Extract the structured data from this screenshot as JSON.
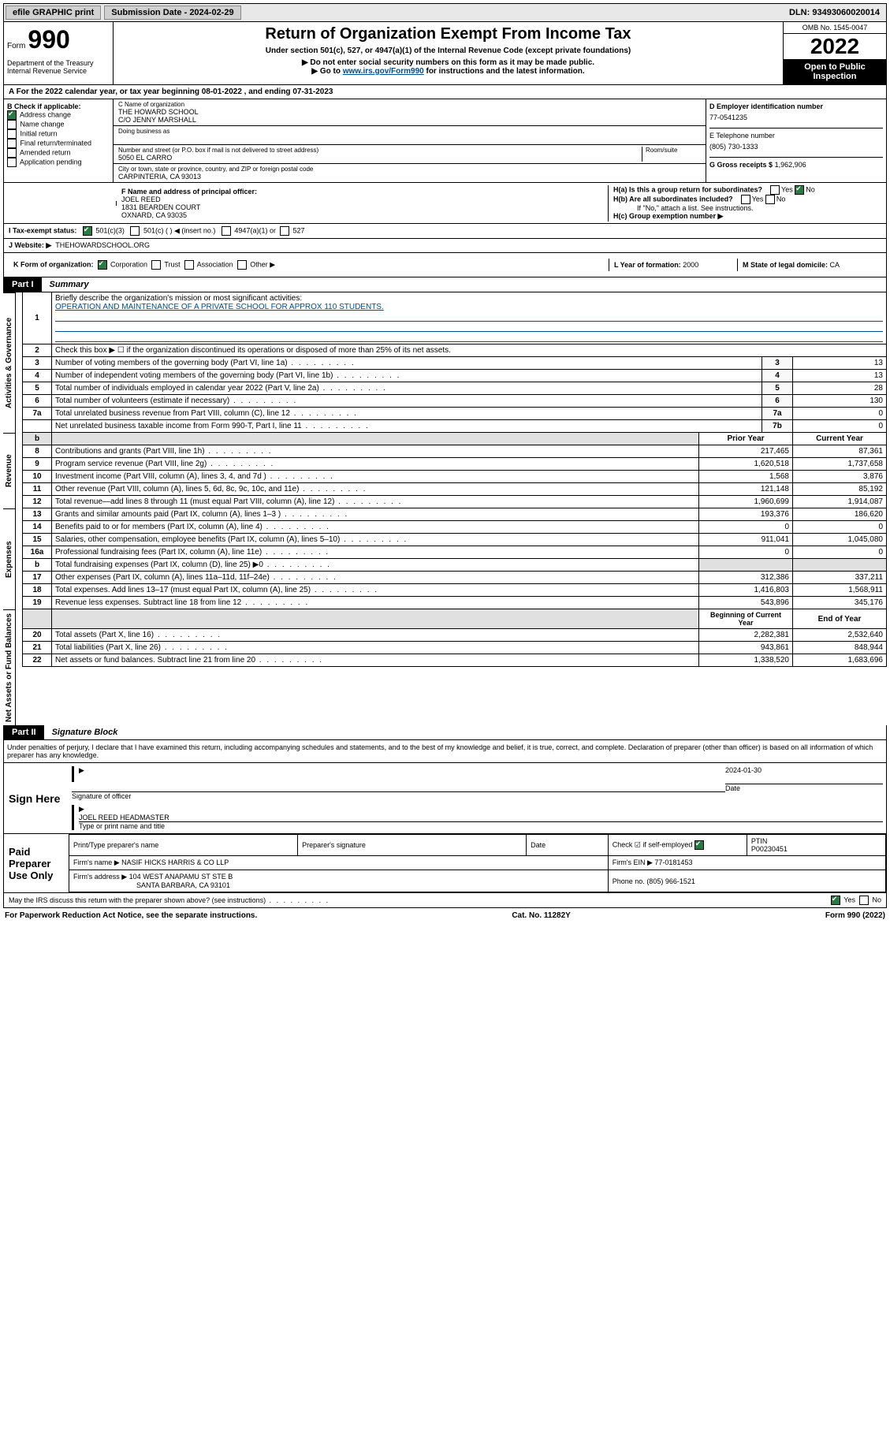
{
  "top": {
    "efile": "efile GRAPHIC print",
    "sub_label": "Submission Date - 2024-02-29",
    "dln": "DLN: 93493060020014"
  },
  "header": {
    "form": "Form",
    "num": "990",
    "title": "Return of Organization Exempt From Income Tax",
    "sub1": "Under section 501(c), 527, or 4947(a)(1) of the Internal Revenue Code (except private foundations)",
    "sub2": "▶ Do not enter social security numbers on this form as it may be made public.",
    "sub3_pre": "▶ Go to ",
    "sub3_link": "www.irs.gov/Form990",
    "sub3_post": " for instructions and the latest information.",
    "omb": "OMB No. 1545-0047",
    "year": "2022",
    "open": "Open to Public Inspection",
    "dept": "Department of the Treasury",
    "irs": "Internal Revenue Service"
  },
  "period": {
    "a": "A For the 2022 calendar year, or tax year beginning 08-01-2022    , and ending 07-31-2023"
  },
  "box_b": {
    "label": "B Check if applicable:",
    "addr": "Address change",
    "name": "Name change",
    "init": "Initial return",
    "final": "Final return/terminated",
    "amend": "Amended return",
    "app": "Application pending"
  },
  "box_c": {
    "name_lab": "C Name of organization",
    "name1": "THE HOWARD SCHOOL",
    "name2": "C/O JENNY MARSHALL",
    "dba_lab": "Doing business as",
    "addr_lab": "Number and street (or P.O. box if mail is not delivered to street address)",
    "room_lab": "Room/suite",
    "addr": "5050 EL CARRO",
    "city_lab": "City or town, state or province, country, and ZIP or foreign postal code",
    "city": "CARPINTERIA, CA  93013"
  },
  "box_d": {
    "ein_lab": "D Employer identification number",
    "ein": "77-0541235",
    "tel_lab": "E Telephone number",
    "tel": "(805) 730-1333",
    "gross_lab": "G Gross receipts $",
    "gross": "1,962,906"
  },
  "box_f": {
    "lab": "F Name and address of principal officer:",
    "n1": "JOEL REED",
    "n2": "1831 BEARDEN COURT",
    "n3": "OXNARD, CA  93035"
  },
  "box_h": {
    "ha": "H(a)  Is this a group return for subordinates?",
    "hb": "H(b)  Are all subordinates included?",
    "hb_note": "If \"No,\" attach a list. See instructions.",
    "hc": "H(c)  Group exemption number ▶",
    "yes": "Yes",
    "no": "No"
  },
  "tax_status": {
    "lab": "I   Tax-exempt status:",
    "c3": "501(c)(3)",
    "c": "501(c) (  ) ◀ (insert no.)",
    "a1": "4947(a)(1) or",
    "s527": "527"
  },
  "website": {
    "lab": "J   Website: ▶",
    "val": "THEHOWARDSCHOOL.ORG"
  },
  "form_org": {
    "lab": "K Form of organization:",
    "corp": "Corporation",
    "trust": "Trust",
    "assoc": "Association",
    "other": "Other ▶",
    "yof_lab": "L Year of formation:",
    "yof": "2000",
    "dom_lab": "M State of legal domicile:",
    "dom": "CA"
  },
  "part1": {
    "tag": "Part I",
    "title": "Summary",
    "l1": "Briefly describe the organization's mission or most significant activities:",
    "mission": "OPERATION AND MAINTENANCE OF A PRIVATE SCHOOL FOR APPROX 110 STUDENTS.",
    "l2": "Check this box ▶ ☐  if the organization discontinued its operations or disposed of more than 25% of its net assets.",
    "rows_gov": [
      {
        "n": "3",
        "d": "Number of voting members of the governing body (Part VI, line 1a)",
        "k": "3",
        "v": "13"
      },
      {
        "n": "4",
        "d": "Number of independent voting members of the governing body (Part VI, line 1b)",
        "k": "4",
        "v": "13"
      },
      {
        "n": "5",
        "d": "Total number of individuals employed in calendar year 2022 (Part V, line 2a)",
        "k": "5",
        "v": "28"
      },
      {
        "n": "6",
        "d": "Total number of volunteers (estimate if necessary)",
        "k": "6",
        "v": "130"
      },
      {
        "n": "7a",
        "d": "Total unrelated business revenue from Part VIII, column (C), line 12",
        "k": "7a",
        "v": "0"
      },
      {
        "n": "",
        "d": "Net unrelated business taxable income from Form 990-T, Part I, line 11",
        "k": "7b",
        "v": "0"
      }
    ],
    "prior": "Prior Year",
    "current": "Current Year",
    "rows_rev": [
      {
        "n": "8",
        "d": "Contributions and grants (Part VIII, line 1h)",
        "p": "217,465",
        "c": "87,361"
      },
      {
        "n": "9",
        "d": "Program service revenue (Part VIII, line 2g)",
        "p": "1,620,518",
        "c": "1,737,658"
      },
      {
        "n": "10",
        "d": "Investment income (Part VIII, column (A), lines 3, 4, and 7d )",
        "p": "1,568",
        "c": "3,876"
      },
      {
        "n": "11",
        "d": "Other revenue (Part VIII, column (A), lines 5, 6d, 8c, 9c, 10c, and 11e)",
        "p": "121,148",
        "c": "85,192"
      },
      {
        "n": "12",
        "d": "Total revenue—add lines 8 through 11 (must equal Part VIII, column (A), line 12)",
        "p": "1,960,699",
        "c": "1,914,087"
      }
    ],
    "rows_exp": [
      {
        "n": "13",
        "d": "Grants and similar amounts paid (Part IX, column (A), lines 1–3 )",
        "p": "193,376",
        "c": "186,620"
      },
      {
        "n": "14",
        "d": "Benefits paid to or for members (Part IX, column (A), line 4)",
        "p": "0",
        "c": "0"
      },
      {
        "n": "15",
        "d": "Salaries, other compensation, employee benefits (Part IX, column (A), lines 5–10)",
        "p": "911,041",
        "c": "1,045,080"
      },
      {
        "n": "16a",
        "d": "Professional fundraising fees (Part IX, column (A), line 11e)",
        "p": "0",
        "c": "0"
      },
      {
        "n": "b",
        "d": "Total fundraising expenses (Part IX, column (D), line 25) ▶0",
        "p": "",
        "c": "",
        "shade": true
      },
      {
        "n": "17",
        "d": "Other expenses (Part IX, column (A), lines 11a–11d, 11f–24e)",
        "p": "312,386",
        "c": "337,211"
      },
      {
        "n": "18",
        "d": "Total expenses. Add lines 13–17 (must equal Part IX, column (A), line 25)",
        "p": "1,416,803",
        "c": "1,568,911"
      },
      {
        "n": "19",
        "d": "Revenue less expenses. Subtract line 18 from line 12",
        "p": "543,896",
        "c": "345,176"
      }
    ],
    "begin": "Beginning of Current Year",
    "end": "End of Year",
    "rows_net": [
      {
        "n": "20",
        "d": "Total assets (Part X, line 16)",
        "p": "2,282,381",
        "c": "2,532,640"
      },
      {
        "n": "21",
        "d": "Total liabilities (Part X, line 26)",
        "p": "943,861",
        "c": "848,944"
      },
      {
        "n": "22",
        "d": "Net assets or fund balances. Subtract line 21 from line 20",
        "p": "1,338,520",
        "c": "1,683,696"
      }
    ],
    "vlab_gov": "Activities & Governance",
    "vlab_rev": "Revenue",
    "vlab_exp": "Expenses",
    "vlab_net": "Net Assets or Fund Balances"
  },
  "part2": {
    "tag": "Part II",
    "title": "Signature Block",
    "decl": "Under penalties of perjury, I declare that I have examined this return, including accompanying schedules and statements, and to the best of my knowledge and belief, it is true, correct, and complete. Declaration of preparer (other than officer) is based on all information of which preparer has any knowledge.",
    "sign_here": "Sign Here",
    "sig_officer": "Signature of officer",
    "date_lab": "Date",
    "date": "2024-01-30",
    "name_title": "JOEL REED  HEADMASTER",
    "type_name": "Type or print name and title",
    "paid": "Paid Preparer Use Only",
    "prep_name_lab": "Print/Type preparer's name",
    "prep_sig_lab": "Preparer's signature",
    "check_lab": "Check ☑ if self-employed",
    "ptin_lab": "PTIN",
    "ptin": "P00230451",
    "firm_name_lab": "Firm's name   ▶",
    "firm_name": "NASIF HICKS HARRIS & CO LLP",
    "firm_ein_lab": "Firm's EIN ▶",
    "firm_ein": "77-0181453",
    "firm_addr_lab": "Firm's address ▶",
    "firm_addr1": "104 WEST ANAPAMU ST STE B",
    "firm_addr2": "SANTA BARBARA, CA  93101",
    "phone_lab": "Phone no.",
    "phone": "(805) 966-1521",
    "may_irs": "May the IRS discuss this return with the preparer shown above? (see instructions)"
  },
  "footer": {
    "pra": "For Paperwork Reduction Act Notice, see the separate instructions.",
    "cat": "Cat. No. 11282Y",
    "form": "Form 990 (2022)"
  }
}
